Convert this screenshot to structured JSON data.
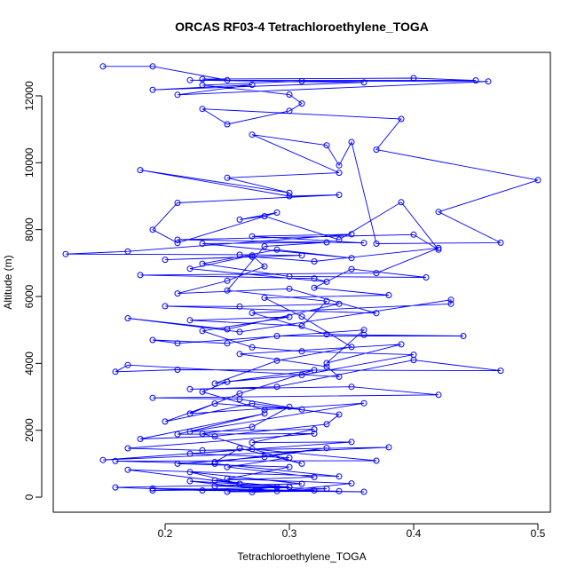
{
  "chart_data": {
    "type": "line",
    "title": "ORCAS RF03-4 Tetrachloroethylene_TOGA",
    "xlabel": "Tetrachloroethylene_TOGA",
    "ylabel": "Altitude (m)",
    "xlim": [
      0.11,
      0.51
    ],
    "ylim": [
      -450,
      13300
    ],
    "x_ticks": [
      0.2,
      0.3,
      0.4,
      0.5
    ],
    "x_tick_labels": [
      "0.2",
      "0.3",
      "0.4",
      "0.5"
    ],
    "y_ticks": [
      0,
      2000,
      4000,
      6000,
      8000,
      10000,
      12000
    ],
    "y_tick_labels": [
      "0",
      "2000",
      "4000",
      "6000",
      "8000",
      "10000",
      "12000"
    ],
    "grid": false,
    "series_color": "#0000ff",
    "marker": "open-circle",
    "series": [
      {
        "points": [
          [
            0.15,
            12880
          ],
          [
            0.19,
            12880
          ],
          [
            0.25,
            12470
          ],
          [
            0.23,
            12500
          ],
          [
            0.4,
            12530
          ],
          [
            0.45,
            12460
          ],
          [
            0.22,
            12470
          ],
          [
            0.36,
            12400
          ],
          [
            0.19,
            12180
          ],
          [
            0.27,
            12330
          ],
          [
            0.21,
            12030
          ],
          [
            0.46,
            12430
          ],
          [
            0.31,
            12440
          ],
          [
            0.23,
            12320
          ],
          [
            0.3,
            12040
          ],
          [
            0.31,
            11770
          ],
          [
            0.3,
            11550
          ],
          [
            0.25,
            11150
          ],
          [
            0.23,
            11610
          ],
          [
            0.39,
            11310
          ],
          [
            0.37,
            10390
          ],
          [
            0.5,
            9480
          ],
          [
            0.42,
            8530
          ],
          [
            0.47,
            7610
          ],
          [
            0.37,
            7580
          ],
          [
            0.35,
            10620
          ],
          [
            0.34,
            9920
          ],
          [
            0.33,
            10520
          ],
          [
            0.27,
            10840
          ],
          [
            0.34,
            9700
          ],
          [
            0.25,
            9550
          ],
          [
            0.3,
            9100
          ],
          [
            0.18,
            9780
          ],
          [
            0.3,
            9000
          ],
          [
            0.34,
            9040
          ],
          [
            0.21,
            8800
          ],
          [
            0.19,
            8000
          ],
          [
            0.21,
            7600
          ],
          [
            0.29,
            8510
          ],
          [
            0.26,
            8300
          ],
          [
            0.28,
            8400
          ],
          [
            0.34,
            7700
          ],
          [
            0.39,
            8820
          ],
          [
            0.42,
            7400
          ],
          [
            0.4,
            7850
          ],
          [
            0.21,
            7700
          ],
          [
            0.36,
            7600
          ],
          [
            0.27,
            7800
          ],
          [
            0.35,
            7860
          ],
          [
            0.17,
            7350
          ],
          [
            0.12,
            7270
          ],
          [
            0.26,
            7250
          ],
          [
            0.31,
            7230
          ],
          [
            0.2,
            7100
          ],
          [
            0.27,
            7190
          ],
          [
            0.32,
            7050
          ],
          [
            0.42,
            7450
          ],
          [
            0.37,
            6700
          ],
          [
            0.18,
            6640
          ],
          [
            0.32,
            6540
          ],
          [
            0.33,
            6440
          ],
          [
            0.22,
            6830
          ],
          [
            0.27,
            7230
          ],
          [
            0.28,
            6900
          ],
          [
            0.25,
            6470
          ],
          [
            0.21,
            6090
          ],
          [
            0.3,
            6230
          ],
          [
            0.37,
            5500
          ],
          [
            0.2,
            5710
          ],
          [
            0.26,
            5700
          ],
          [
            0.34,
            5780
          ],
          [
            0.25,
            5020
          ],
          [
            0.17,
            5350
          ],
          [
            0.26,
            4940
          ],
          [
            0.43,
            5900
          ],
          [
            0.43,
            5780
          ],
          [
            0.27,
            5510
          ],
          [
            0.33,
            4870
          ],
          [
            0.36,
            4850
          ],
          [
            0.44,
            4820
          ],
          [
            0.29,
            4820
          ],
          [
            0.25,
            4600
          ],
          [
            0.19,
            4700
          ],
          [
            0.21,
            4600
          ],
          [
            0.36,
            5000
          ],
          [
            0.33,
            4010
          ],
          [
            0.39,
            4570
          ],
          [
            0.26,
            4280
          ],
          [
            0.33,
            3900
          ],
          [
            0.34,
            3600
          ],
          [
            0.17,
            3950
          ],
          [
            0.16,
            3750
          ],
          [
            0.21,
            3810
          ],
          [
            0.47,
            3780
          ],
          [
            0.4,
            4100
          ],
          [
            0.29,
            3300
          ],
          [
            0.22,
            3230
          ],
          [
            0.35,
            3300
          ],
          [
            0.42,
            3060
          ],
          [
            0.19,
            2970
          ],
          [
            0.26,
            2930
          ],
          [
            0.31,
            2620
          ],
          [
            0.24,
            2800
          ],
          [
            0.2,
            2260
          ],
          [
            0.27,
            2800
          ],
          [
            0.34,
            2470
          ],
          [
            0.33,
            2180
          ],
          [
            0.24,
            1820
          ],
          [
            0.18,
            1740
          ],
          [
            0.28,
            2500
          ],
          [
            0.21,
            1880
          ],
          [
            0.32,
            1900
          ],
          [
            0.17,
            1460
          ],
          [
            0.23,
            1400
          ],
          [
            0.38,
            1490
          ],
          [
            0.15,
            1110
          ],
          [
            0.27,
            1440
          ],
          [
            0.37,
            1090
          ],
          [
            0.16,
            1080
          ],
          [
            0.24,
            1000
          ],
          [
            0.34,
            620
          ],
          [
            0.17,
            820
          ],
          [
            0.26,
            400
          ],
          [
            0.22,
            750
          ],
          [
            0.31,
            400
          ],
          [
            0.16,
            290
          ],
          [
            0.23,
            200
          ],
          [
            0.36,
            160
          ],
          [
            0.19,
            260
          ],
          [
            0.32,
            200
          ],
          [
            0.27,
            150
          ],
          [
            0.33,
            250
          ],
          [
            0.24,
            330
          ],
          [
            0.3,
            310
          ],
          [
            0.22,
            480
          ],
          [
            0.29,
            180
          ],
          [
            0.35,
            410
          ],
          [
            0.25,
            550
          ],
          [
            0.3,
            900
          ],
          [
            0.21,
            1000
          ],
          [
            0.28,
            1200
          ],
          [
            0.33,
            1470
          ],
          [
            0.24,
            1050
          ],
          [
            0.26,
            1460
          ],
          [
            0.31,
            1000
          ],
          [
            0.23,
            1900
          ],
          [
            0.27,
            2100
          ],
          [
            0.3,
            2700
          ],
          [
            0.22,
            2500
          ],
          [
            0.26,
            3100
          ],
          [
            0.32,
            3800
          ],
          [
            0.24,
            3400
          ],
          [
            0.29,
            4080
          ],
          [
            0.35,
            4490
          ],
          [
            0.31,
            5400
          ],
          [
            0.28,
            5960
          ],
          [
            0.38,
            6040
          ],
          [
            0.32,
            6260
          ],
          [
            0.35,
            6820
          ],
          [
            0.41,
            6570
          ],
          [
            0.3,
            6600
          ],
          [
            0.23,
            6980
          ],
          [
            0.29,
            7400
          ],
          [
            0.35,
            7150
          ],
          [
            0.23,
            7580
          ],
          [
            0.33,
            7620
          ],
          [
            0.28,
            7500
          ],
          [
            0.25,
            6180
          ],
          [
            0.33,
            5860
          ],
          [
            0.31,
            5120
          ],
          [
            0.22,
            5290
          ],
          [
            0.3,
            5390
          ],
          [
            0.23,
            4970
          ],
          [
            0.27,
            4480
          ],
          [
            0.31,
            4360
          ],
          [
            0.4,
            4260
          ],
          [
            0.31,
            3650
          ],
          [
            0.25,
            3450
          ],
          [
            0.23,
            3150
          ],
          [
            0.28,
            2610
          ],
          [
            0.36,
            2810
          ],
          [
            0.22,
            1960
          ],
          [
            0.32,
            2030
          ],
          [
            0.27,
            1630
          ],
          [
            0.35,
            1650
          ],
          [
            0.22,
            1300
          ],
          [
            0.3,
            1180
          ],
          [
            0.25,
            900
          ],
          [
            0.32,
            600
          ],
          [
            0.24,
            500
          ],
          [
            0.3,
            300
          ],
          [
            0.19,
            200
          ],
          [
            0.27,
            230
          ],
          [
            0.34,
            180
          ],
          [
            0.25,
            160
          ],
          [
            0.29,
            300
          ]
        ]
      }
    ]
  }
}
